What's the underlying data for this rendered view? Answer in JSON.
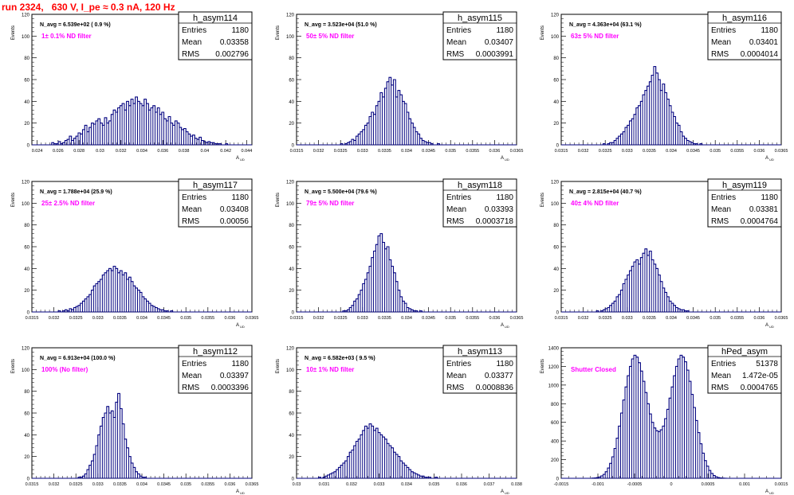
{
  "page": {
    "title": "run 2324,   630 V, I_pe ≈ 0.3 nA, 120 Hz",
    "stats_labels": {
      "entries": "Entries",
      "mean": "Mean",
      "rms": "RMS"
    },
    "ylabel": "Events",
    "xlabel": "A",
    "xlabel_sub": "UD",
    "colors": {
      "histogram": "#00007f",
      "annotation": "#ff00ff",
      "title": "#ff0000",
      "axis": "#000000"
    }
  },
  "chart_data": [
    {
      "type": "histogram",
      "name": "h_asym114",
      "navg": "N_avg = 6.539e+02 ( 0.9 %)",
      "filter": "1± 0.1% ND filter",
      "entries": "1180",
      "mean": "0.03358",
      "rms": "0.002796",
      "xlim": [
        0.0235,
        0.0445
      ],
      "ylim": [
        0,
        120
      ],
      "xticks": [
        "0.024",
        "0.026",
        "0.028",
        "0.03",
        "0.032",
        "0.034",
        "0.036",
        "0.038",
        "0.04",
        "0.042",
        "0.044"
      ],
      "yticks": [
        "0",
        "20",
        "40",
        "60",
        "80",
        "100",
        "120"
      ],
      "x_start": 0.0235,
      "bin_width": 0.00021,
      "counts": [
        0,
        0,
        0,
        0,
        0,
        0,
        0,
        0,
        0,
        2,
        1,
        1,
        3,
        1,
        2,
        4,
        5,
        8,
        4,
        6,
        8,
        11,
        10,
        14,
        18,
        12,
        16,
        20,
        19,
        22,
        24,
        20,
        18,
        25,
        20,
        22,
        28,
        32,
        30,
        34,
        36,
        38,
        32,
        40,
        36,
        42,
        38,
        44,
        40,
        38,
        36,
        42,
        38,
        32,
        34,
        36,
        30,
        34,
        28,
        30,
        24,
        22,
        26,
        20,
        18,
        22,
        20,
        16,
        14,
        15,
        12,
        10,
        8,
        9,
        6,
        5,
        7,
        4,
        3,
        2,
        3,
        2,
        2,
        1,
        1,
        1,
        0,
        0,
        1,
        0,
        0,
        0,
        0,
        0,
        0,
        0,
        0,
        0,
        0,
        0
      ]
    },
    {
      "type": "histogram",
      "name": "h_asym115",
      "navg": "N_avg = 3.523e+04 (51.0 %)",
      "filter": "50± 5% ND filter",
      "entries": "1180",
      "mean": "0.03407",
      "rms": "0.0003991",
      "xlim": [
        0.0315,
        0.0365
      ],
      "ylim": [
        0,
        120
      ],
      "xticks": [
        "0.0315",
        "0.032",
        "0.0325",
        "0.033",
        "0.0335",
        "0.034",
        "0.0345",
        "0.035",
        "0.0355",
        "0.036",
        "0.0365"
      ],
      "yticks": [
        "0",
        "20",
        "40",
        "60",
        "80",
        "100",
        "120"
      ],
      "x_start": 0.0315,
      "bin_width": 5e-05,
      "counts": [
        0,
        0,
        0,
        0,
        0,
        0,
        0,
        0,
        0,
        0,
        0,
        0,
        0,
        0,
        0,
        0,
        0,
        0,
        0,
        0,
        1,
        0,
        1,
        2,
        3,
        5,
        4,
        8,
        10,
        12,
        14,
        18,
        20,
        26,
        30,
        28,
        36,
        40,
        48,
        44,
        52,
        58,
        62,
        55,
        60,
        44,
        50,
        46,
        40,
        38,
        30,
        24,
        20,
        16,
        12,
        10,
        6,
        4,
        3,
        2,
        2,
        1,
        0,
        0,
        1,
        0,
        0,
        0,
        0,
        0,
        0,
        0,
        0,
        0,
        0,
        0,
        0,
        0,
        0,
        0,
        0,
        0,
        0,
        0,
        0,
        0,
        0,
        0,
        0,
        0,
        0,
        0,
        0,
        0,
        0,
        0,
        0,
        0,
        0,
        0
      ]
    },
    {
      "type": "histogram",
      "name": "h_asym116",
      "navg": "N_avg = 4.363e+04 (63.1 %)",
      "filter": "63± 5% ND filter",
      "entries": "1180",
      "mean": "0.03401",
      "rms": "0.0004014",
      "xlim": [
        0.0315,
        0.0365
      ],
      "ylim": [
        0,
        120
      ],
      "xticks": [
        "0.0315",
        "0.032",
        "0.0325",
        "0.033",
        "0.0335",
        "0.034",
        "0.0345",
        "0.035",
        "0.0355",
        "0.036",
        "0.0365"
      ],
      "yticks": [
        "0",
        "20",
        "40",
        "60",
        "80",
        "100",
        "120"
      ],
      "x_start": 0.0315,
      "bin_width": 5e-05,
      "counts": [
        0,
        0,
        0,
        0,
        0,
        0,
        0,
        0,
        0,
        0,
        0,
        0,
        0,
        0,
        0,
        0,
        0,
        0,
        0,
        1,
        0,
        1,
        2,
        2,
        4,
        6,
        8,
        10,
        12,
        16,
        18,
        22,
        24,
        28,
        34,
        36,
        40,
        46,
        50,
        54,
        58,
        64,
        72,
        66,
        60,
        50,
        56,
        48,
        42,
        36,
        30,
        26,
        20,
        18,
        12,
        8,
        6,
        4,
        3,
        2,
        1,
        1,
        0,
        1,
        0,
        0,
        0,
        0,
        0,
        0,
        0,
        0,
        0,
        0,
        0,
        0,
        0,
        0,
        0,
        0,
        0,
        0,
        0,
        0,
        0,
        0,
        0,
        0,
        0,
        0,
        0,
        0,
        0,
        0,
        0,
        0,
        0,
        0,
        0,
        0
      ]
    },
    {
      "type": "histogram",
      "name": "h_asym117",
      "navg": "N_avg = 1.788e+04 (25.9 %)",
      "filter": "25± 2.5% ND filter",
      "entries": "1180",
      "mean": "0.03408",
      "rms": "0.00056",
      "xlim": [
        0.0315,
        0.0365
      ],
      "ylim": [
        0,
        120
      ],
      "xticks": [
        "0.0315",
        "0.032",
        "0.0325",
        "0.033",
        "0.0335",
        "0.034",
        "0.0345",
        "0.035",
        "0.0355",
        "0.036",
        "0.0365"
      ],
      "yticks": [
        "0",
        "20",
        "40",
        "60",
        "80",
        "100",
        "120"
      ],
      "x_start": 0.0315,
      "bin_width": 5e-05,
      "counts": [
        0,
        0,
        0,
        0,
        0,
        0,
        0,
        0,
        0,
        0,
        0,
        0,
        1,
        0,
        1,
        2,
        1,
        3,
        2,
        4,
        5,
        6,
        8,
        10,
        12,
        14,
        16,
        20,
        24,
        26,
        28,
        30,
        34,
        36,
        38,
        40,
        38,
        42,
        40,
        36,
        38,
        34,
        36,
        30,
        32,
        28,
        24,
        22,
        20,
        18,
        14,
        12,
        10,
        8,
        6,
        5,
        4,
        3,
        2,
        2,
        1,
        1,
        0,
        1,
        0,
        0,
        0,
        0,
        0,
        0,
        0,
        0,
        0,
        0,
        0,
        0,
        0,
        0,
        0,
        0,
        0,
        0,
        0,
        0,
        0,
        0,
        0,
        0,
        0,
        0,
        0,
        0,
        0,
        0,
        0,
        0,
        0,
        0,
        0,
        0
      ]
    },
    {
      "type": "histogram",
      "name": "h_asym118",
      "navg": "N_avg = 5.500e+04 (79.6 %)",
      "filter": "79± 5% ND filter",
      "entries": "1180",
      "mean": "0.03393",
      "rms": "0.0003718",
      "xlim": [
        0.0315,
        0.0365
      ],
      "ylim": [
        0,
        120
      ],
      "xticks": [
        "0.0315",
        "0.032",
        "0.0325",
        "0.033",
        "0.0335",
        "0.034",
        "0.0345",
        "0.035",
        "0.0355",
        "0.036",
        "0.0365"
      ],
      "yticks": [
        "0",
        "20",
        "40",
        "60",
        "80",
        "100",
        "120"
      ],
      "x_start": 0.0315,
      "bin_width": 5e-05,
      "counts": [
        0,
        0,
        0,
        0,
        0,
        0,
        0,
        0,
        0,
        0,
        0,
        0,
        0,
        0,
        0,
        0,
        0,
        0,
        0,
        0,
        0,
        1,
        1,
        2,
        4,
        6,
        10,
        12,
        16,
        20,
        26,
        30,
        36,
        42,
        50,
        56,
        62,
        70,
        72,
        64,
        58,
        60,
        48,
        42,
        36,
        28,
        20,
        14,
        10,
        8,
        4,
        3,
        2,
        1,
        1,
        0,
        1,
        0,
        0,
        0,
        0,
        0,
        0,
        0,
        0,
        0,
        0,
        0,
        0,
        0,
        0,
        0,
        0,
        0,
        0,
        0,
        0,
        0,
        0,
        0,
        0,
        0,
        0,
        0,
        0,
        0,
        0,
        0,
        0,
        0,
        0,
        0,
        0,
        0,
        0,
        0,
        0,
        0,
        0,
        0
      ]
    },
    {
      "type": "histogram",
      "name": "h_asym119",
      "navg": "N_avg = 2.815e+04 (40.7 %)",
      "filter": "40± 4% ND filter",
      "entries": "1180",
      "mean": "0.03381",
      "rms": "0.0004764",
      "xlim": [
        0.0315,
        0.0365
      ],
      "ylim": [
        0,
        120
      ],
      "xticks": [
        "0.0315",
        "0.032",
        "0.0325",
        "0.033",
        "0.0335",
        "0.034",
        "0.0345",
        "0.035",
        "0.0355",
        "0.036",
        "0.0365"
      ],
      "yticks": [
        "0",
        "20",
        "40",
        "60",
        "80",
        "100",
        "120"
      ],
      "x_start": 0.0315,
      "bin_width": 5e-05,
      "counts": [
        0,
        0,
        0,
        0,
        0,
        0,
        0,
        0,
        0,
        0,
        0,
        0,
        0,
        0,
        0,
        0,
        1,
        0,
        1,
        2,
        3,
        4,
        6,
        8,
        10,
        14,
        16,
        20,
        26,
        30,
        34,
        38,
        42,
        46,
        48,
        44,
        50,
        54,
        58,
        52,
        56,
        48,
        44,
        40,
        34,
        28,
        22,
        18,
        14,
        10,
        8,
        6,
        4,
        3,
        2,
        2,
        1,
        1,
        0,
        0,
        0,
        0,
        0,
        0,
        0,
        0,
        0,
        0,
        0,
        0,
        0,
        0,
        0,
        0,
        0,
        0,
        0,
        0,
        0,
        0,
        0,
        0,
        0,
        0,
        0,
        0,
        0,
        0,
        0,
        0,
        0,
        0,
        0,
        0,
        0,
        0,
        0,
        0,
        0,
        0
      ]
    },
    {
      "type": "histogram",
      "name": "h_asym112",
      "navg": "N_avg = 6.913e+04 (100.0 %)",
      "filter": "100% (No filter)",
      "entries": "1180",
      "mean": "0.03397",
      "rms": "0.0003396",
      "xlim": [
        0.0315,
        0.0365
      ],
      "ylim": [
        0,
        120
      ],
      "xticks": [
        "0.0315",
        "0.032",
        "0.0325",
        "0.033",
        "0.0335",
        "0.034",
        "0.0345",
        "0.035",
        "0.0355",
        "0.036",
        "0.0365"
      ],
      "yticks": [
        "0",
        "20",
        "40",
        "60",
        "80",
        "100",
        "120"
      ],
      "x_start": 0.0315,
      "bin_width": 5e-05,
      "counts": [
        0,
        0,
        0,
        0,
        0,
        0,
        0,
        0,
        0,
        0,
        0,
        0,
        0,
        0,
        0,
        0,
        0,
        0,
        0,
        0,
        0,
        1,
        1,
        2,
        4,
        8,
        12,
        16,
        22,
        30,
        40,
        48,
        56,
        60,
        66,
        60,
        62,
        56,
        70,
        78,
        64,
        50,
        36,
        28,
        20,
        14,
        10,
        6,
        4,
        2,
        1,
        1,
        0,
        0,
        0,
        0,
        0,
        0,
        0,
        0,
        0,
        0,
        0,
        0,
        0,
        0,
        0,
        0,
        0,
        0,
        0,
        0,
        0,
        0,
        0,
        0,
        0,
        0,
        0,
        0,
        0,
        0,
        0,
        0,
        0,
        0,
        0,
        0,
        0,
        0,
        0,
        0,
        0,
        0,
        0,
        0,
        0,
        0,
        0,
        0
      ]
    },
    {
      "type": "histogram",
      "name": "h_asym113",
      "navg": "N_avg = 6.582e+03 ( 9.5 %)",
      "filter": "10± 1% ND filter",
      "entries": "1180",
      "mean": "0.03377",
      "rms": "0.0008836",
      "xlim": [
        0.03,
        0.038
      ],
      "ylim": [
        0,
        120
      ],
      "xticks": [
        "0.03",
        "0.031",
        "0.032",
        "0.033",
        "0.034",
        "0.035",
        "0.036",
        "0.037",
        "0.038"
      ],
      "yticks": [
        "0",
        "20",
        "40",
        "60",
        "80",
        "100",
        "120"
      ],
      "x_start": 0.03,
      "bin_width": 8e-05,
      "counts": [
        0,
        0,
        0,
        0,
        0,
        0,
        0,
        0,
        0,
        0,
        1,
        0,
        1,
        2,
        3,
        4,
        5,
        6,
        8,
        10,
        12,
        14,
        16,
        20,
        24,
        26,
        30,
        34,
        36,
        40,
        44,
        48,
        46,
        50,
        48,
        44,
        46,
        42,
        40,
        38,
        36,
        32,
        30,
        28,
        24,
        22,
        20,
        16,
        14,
        12,
        10,
        8,
        6,
        5,
        4,
        3,
        2,
        2,
        1,
        1,
        1,
        0,
        0,
        1,
        0,
        0,
        0,
        0,
        0,
        0,
        0,
        0,
        0,
        0,
        0,
        0,
        0,
        0,
        0,
        0,
        0,
        0,
        0,
        0,
        0,
        0,
        0,
        0,
        0,
        0,
        0,
        0,
        0,
        0,
        0,
        0,
        0,
        0,
        0,
        0
      ]
    },
    {
      "type": "histogram",
      "name": "hPed_asym",
      "navg": "",
      "filter": "Shutter Closed",
      "entries": "51378",
      "mean": "1.472e-05",
      "rms": "0.0004765",
      "xlim": [
        -0.0015,
        0.0015
      ],
      "ylim": [
        0,
        1400
      ],
      "xticks": [
        "-0.0015",
        "-0.001",
        "-0.0005",
        "0",
        "0.0005",
        "0.001",
        "0.0015"
      ],
      "yticks": [
        "0",
        "200",
        "400",
        "600",
        "800",
        "1000",
        "1200",
        "1400"
      ],
      "x_start": -0.0015,
      "bin_width": 3e-05,
      "counts": [
        0,
        0,
        0,
        0,
        0,
        0,
        0,
        0,
        0,
        0,
        0,
        0,
        0,
        0,
        2,
        4,
        8,
        14,
        26,
        42,
        70,
        110,
        160,
        230,
        320,
        430,
        560,
        700,
        840,
        980,
        1100,
        1200,
        1280,
        1320,
        1300,
        1240,
        1150,
        1040,
        920,
        800,
        690,
        600,
        540,
        510,
        500,
        520,
        560,
        640,
        740,
        860,
        980,
        1100,
        1200,
        1280,
        1320,
        1300,
        1250,
        1160,
        1040,
        900,
        760,
        620,
        490,
        370,
        270,
        190,
        130,
        84,
        52,
        30,
        16,
        8,
        4,
        2,
        1,
        0,
        0,
        0,
        0,
        0,
        0,
        0,
        0,
        0,
        0,
        0,
        0,
        0,
        0,
        0,
        0,
        0,
        0,
        0,
        0,
        0,
        0,
        0,
        0,
        0
      ]
    }
  ]
}
